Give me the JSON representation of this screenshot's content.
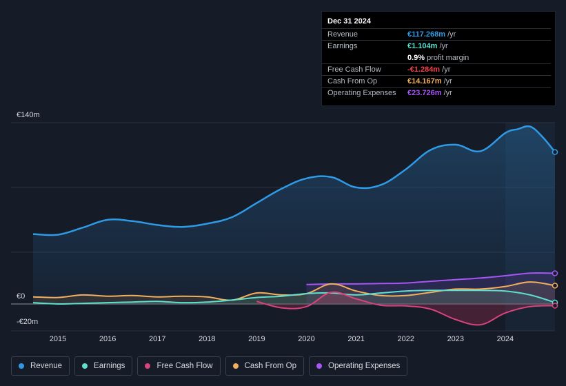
{
  "tooltip": {
    "date": "Dec 31 2024",
    "rows": [
      {
        "label": "Revenue",
        "value": "€117.268m",
        "unit": "/yr",
        "color": "#2f9be6"
      },
      {
        "label": "Earnings",
        "value": "€1.104m",
        "unit": "/yr",
        "color": "#5ee0cf"
      },
      {
        "label": "",
        "value": "0.9%",
        "unit": "profit margin",
        "color": "#ffffff"
      },
      {
        "label": "Free Cash Flow",
        "value": "-€1.284m",
        "unit": "/yr",
        "color": "#f0424a"
      },
      {
        "label": "Cash From Op",
        "value": "€14.167m",
        "unit": "/yr",
        "color": "#f2b05f"
      },
      {
        "label": "Operating Expenses",
        "value": "€23.726m",
        "unit": "/yr",
        "color": "#a855f7"
      }
    ]
  },
  "legend": [
    {
      "label": "Revenue",
      "color": "#2f9be6"
    },
    {
      "label": "Earnings",
      "color": "#5ee0cf"
    },
    {
      "label": "Free Cash Flow",
      "color": "#d9437e"
    },
    {
      "label": "Cash From Op",
      "color": "#f2b05f"
    },
    {
      "label": "Operating Expenses",
      "color": "#a855f7"
    }
  ],
  "chart_data": {
    "type": "line",
    "title": "",
    "xlabel": "",
    "ylabel": "",
    "y_tick_labels": [
      {
        "value": 140,
        "label": "€140m"
      },
      {
        "value": 0,
        "label": "€0"
      },
      {
        "value": -20,
        "label": "-€20m"
      }
    ],
    "ylim": [
      -20,
      140
    ],
    "xlim": [
      2014.5,
      2025.0
    ],
    "x_ticks": [
      2015,
      2016,
      2017,
      2018,
      2019,
      2020,
      2021,
      2022,
      2023,
      2024
    ],
    "x_tick_labels": [
      "2015",
      "2016",
      "2017",
      "2018",
      "2019",
      "2020",
      "2021",
      "2022",
      "2023",
      "2024"
    ],
    "forecast_start": 2024.0,
    "series": [
      {
        "name": "Revenue",
        "color": "#2f9be6",
        "x": [
          2014.5,
          2015.0,
          2015.5,
          2016.0,
          2016.5,
          2017.0,
          2017.5,
          2018.0,
          2018.5,
          2019.0,
          2019.5,
          2020.0,
          2020.5,
          2021.0,
          2021.5,
          2022.0,
          2022.5,
          2023.0,
          2023.5,
          2024.0,
          2024.25,
          2024.5,
          2024.75,
          2025.0
        ],
        "values": [
          54,
          53.5,
          59,
          65,
          64,
          61,
          59.5,
          62,
          67,
          78,
          89,
          97,
          98,
          90,
          92,
          104,
          119,
          123,
          118,
          132,
          135,
          137,
          129,
          117.3
        ]
      },
      {
        "name": "Earnings",
        "color": "#5ee0cf",
        "x": [
          2014.5,
          2015.0,
          2015.5,
          2016.0,
          2016.5,
          2017.0,
          2017.5,
          2018.0,
          2018.5,
          2019.0,
          2019.5,
          2020.0,
          2020.5,
          2021.0,
          2021.5,
          2022.0,
          2022.5,
          2023.0,
          2023.5,
          2024.0,
          2024.5,
          2025.0
        ],
        "values": [
          1,
          0,
          0.5,
          1,
          1.5,
          2,
          1,
          1.5,
          3,
          5,
          6,
          8,
          8.5,
          7,
          8.5,
          10,
          10.5,
          10.5,
          10.5,
          10,
          7,
          1.1
        ]
      },
      {
        "name": "Free Cash Flow",
        "color": "#d9437e",
        "x": [
          2019.0,
          2019.5,
          2020.0,
          2020.5,
          2021.0,
          2021.5,
          2022.0,
          2022.5,
          2023.0,
          2023.5,
          2024.0,
          2024.5,
          2025.0
        ],
        "values": [
          2,
          -3,
          -2,
          9,
          4,
          -1,
          -1.5,
          -4,
          -12,
          -16,
          -7,
          -2,
          -1.3
        ]
      },
      {
        "name": "Cash From Op",
        "color": "#f2b05f",
        "x": [
          2014.5,
          2015.0,
          2015.5,
          2016.0,
          2016.5,
          2017.0,
          2017.5,
          2018.0,
          2018.5,
          2019.0,
          2019.5,
          2020.0,
          2020.5,
          2021.0,
          2021.5,
          2022.0,
          2022.5,
          2023.0,
          2023.5,
          2024.0,
          2024.5,
          2025.0
        ],
        "values": [
          5.5,
          5,
          7,
          6,
          6.5,
          5.5,
          6,
          5.5,
          3,
          8.5,
          7,
          8,
          15.5,
          10,
          6.5,
          6.5,
          9,
          11.5,
          11.5,
          13.5,
          17,
          14.2
        ]
      },
      {
        "name": "Operating Expenses",
        "color": "#a855f7",
        "x": [
          2020.0,
          2020.5,
          2021.0,
          2021.5,
          2022.0,
          2022.5,
          2023.0,
          2023.5,
          2024.0,
          2024.5,
          2025.0
        ],
        "values": [
          15,
          15.5,
          15.5,
          15.8,
          16.2,
          17.5,
          18.8,
          20,
          21.8,
          23.8,
          23.7
        ]
      }
    ]
  }
}
